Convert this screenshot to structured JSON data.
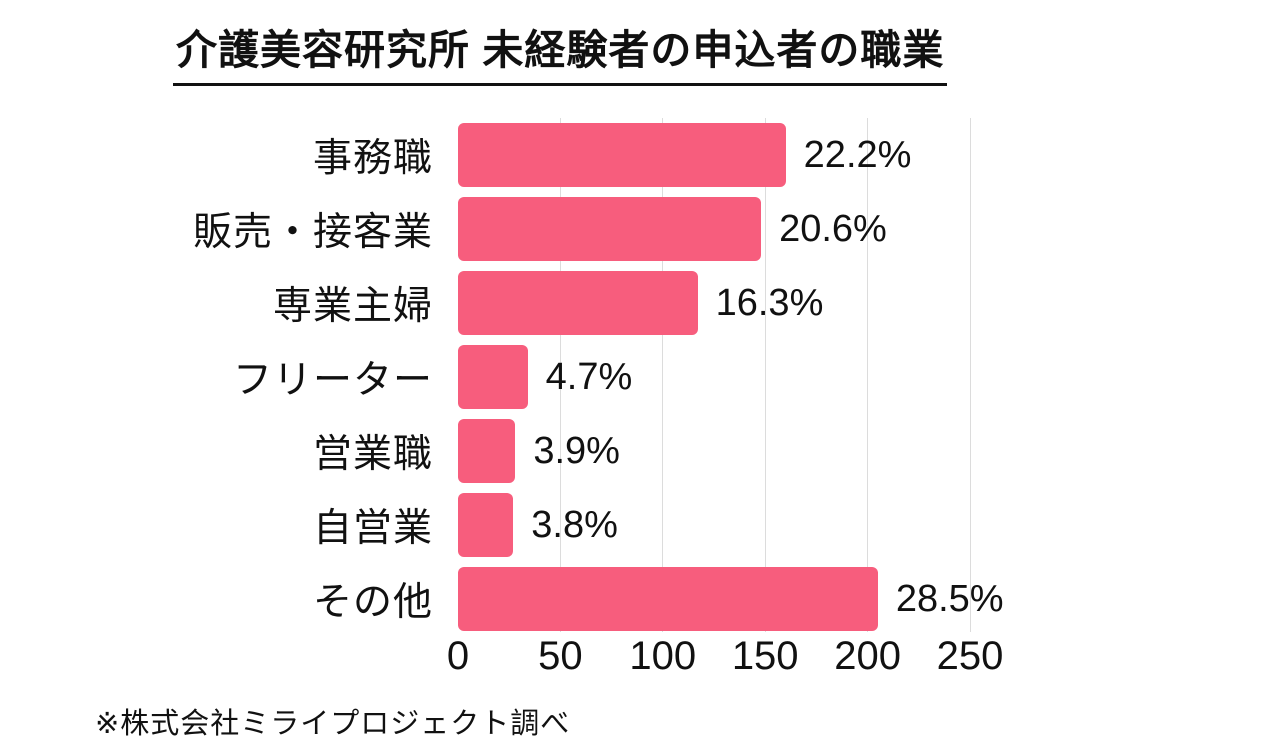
{
  "page": {
    "background": "#ffffff"
  },
  "title": {
    "text": "介護美容研究所 未経験者の申込者の職業"
  },
  "footnote": {
    "text": "※株式会社ミライプロジェクト調べ"
  },
  "colors": {
    "bar": "#f75d7d",
    "gridline": "#dcdcdc",
    "text": "#111111",
    "background": "#ffffff"
  },
  "chart_data": {
    "type": "bar",
    "orientation": "horizontal",
    "title": "介護美容研究所 未経験者の申込者の職業",
    "categories": [
      "事務職",
      "販売・接客業",
      "専業主婦",
      "フリーター",
      "営業職",
      "自営業",
      "その他"
    ],
    "values": [
      160,
      148,
      117,
      34,
      28,
      27,
      205
    ],
    "value_labels": [
      "22.2%",
      "20.6%",
      "16.3%",
      "4.7%",
      "3.9%",
      "3.8%",
      "28.5%"
    ],
    "series_note": "values are applicant counts estimated from the 0-250 axis; labels show percentage share",
    "xlabel": "",
    "ylabel": "",
    "xlim": [
      0,
      250
    ],
    "xticks": [
      0,
      50,
      100,
      150,
      200,
      250
    ],
    "grid": true,
    "legend": false,
    "source": "※株式会社ミライプロジェクト調べ"
  }
}
